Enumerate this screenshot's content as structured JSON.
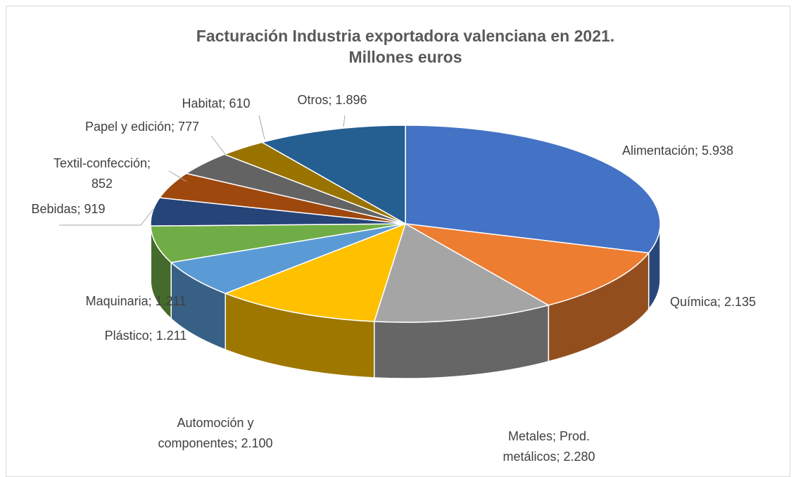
{
  "chart_data": {
    "type": "pie",
    "title": "Facturación Industria exportadora valenciana en 2021. Millones euros",
    "values": [
      5938,
      2135,
      2280,
      2100,
      1211,
      1211,
      919,
      852,
      777,
      610,
      1896
    ],
    "value_labels": [
      "Alimentación; 5.938",
      "Química; 2.135",
      "Metales; Prod.\nmetálicos; 2.280",
      "Automoción y\ncomponentes; 2.100",
      "Plástico; 1.211",
      "Maquinaria; 1.211",
      "Bebidas; 919",
      "Textil-confección;\n852",
      "Papel y edición; 777",
      "Habitat; 610",
      "Otros; 1.896"
    ],
    "colors": [
      "#4472c4",
      "#ed7d31",
      "#a5a5a5",
      "#ffc000",
      "#5b9bd5",
      "#70ad47",
      "#264478",
      "#9e480e",
      "#636363",
      "#997300",
      "#255e91"
    ]
  }
}
